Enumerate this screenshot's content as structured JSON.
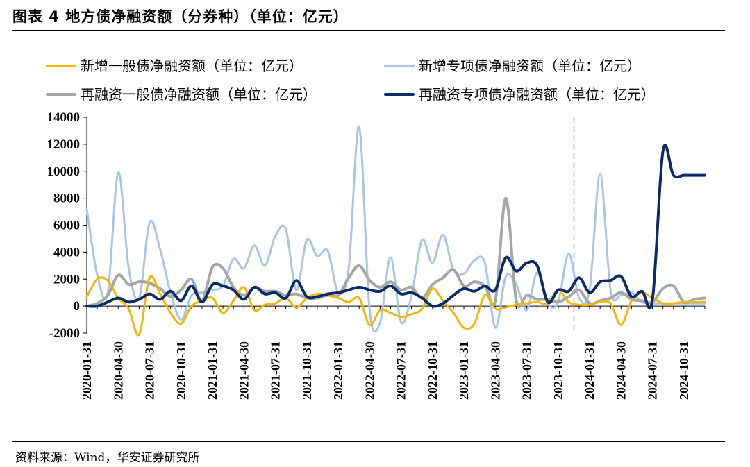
{
  "header": {
    "title": "图表 4 地方债净融资额（分券种）（单位：亿元）"
  },
  "footer": {
    "source": "资料来源：Wind，华安证券研究所"
  },
  "chart_data": {
    "type": "line",
    "title": "图表 4 地方债净融资额（分券种）（单位：亿元）",
    "xlabel": "",
    "ylabel": "",
    "ylim": [
      -2000,
      14000
    ],
    "yticks": [
      -2000,
      0,
      2000,
      4000,
      6000,
      8000,
      10000,
      12000,
      14000
    ],
    "ytick_labels": [
      "-2000",
      "0",
      "2000",
      "4000",
      "6000",
      "8000",
      "10000",
      "12000",
      "14000"
    ],
    "x_tick_labels": [
      "2020-01-31",
      "2020-04-30",
      "2020-07-31",
      "2020-10-31",
      "2021-01-31",
      "2021-04-30",
      "2021-07-31",
      "2021-10-31",
      "2022-01-31",
      "2022-04-30",
      "2022-07-31",
      "2022-10-31",
      "2023-01-31",
      "2023-04-30",
      "2023-07-31",
      "2023-10-31",
      "2024-01-31",
      "2024-04-30",
      "2024-07-31",
      "2024-10-31"
    ],
    "x_tick_index": [
      0,
      3,
      6,
      9,
      12,
      15,
      18,
      21,
      24,
      27,
      30,
      33,
      36,
      39,
      42,
      45,
      48,
      51,
      54,
      57
    ],
    "n_points": 60,
    "vline_index": 46.5,
    "series": [
      {
        "name": "新增一般债净融资额（单位：亿元）",
        "color": "#F2B705",
        "width": 3,
        "values": [
          700,
          2000,
          1900,
          600,
          -200,
          -2100,
          2100,
          900,
          -500,
          -1300,
          0,
          400,
          600,
          -500,
          400,
          1400,
          -300,
          100,
          200,
          600,
          -100,
          600,
          900,
          800,
          600,
          300,
          600,
          -1400,
          -300,
          -500,
          -800,
          -600,
          -200,
          1300,
          400,
          -500,
          -1600,
          -1300,
          800,
          -200,
          -100,
          100,
          200,
          300,
          200,
          1200,
          300,
          100,
          100,
          300,
          200,
          -1400,
          400,
          1000,
          600,
          200,
          200,
          300,
          300,
          300
        ]
      },
      {
        "name": "新增专项债净融资额（单位：亿元）",
        "color": "#A9C4E8",
        "width": 3,
        "values": [
          7200,
          2300,
          1000,
          9900,
          2800,
          600,
          6200,
          4200,
          1000,
          -1000,
          800,
          1000,
          1200,
          1500,
          3500,
          2800,
          4500,
          3000,
          5200,
          5700,
          1200,
          4900,
          3700,
          4100,
          1000,
          2800,
          13300,
          -300,
          -1200,
          3600,
          -1200,
          800,
          4900,
          3200,
          5300,
          2700,
          2400,
          3400,
          3200,
          -1600,
          2200,
          1600,
          -300,
          2500,
          200,
          300,
          3900,
          600,
          1200,
          9800,
          1200,
          800,
          1000,
          300,
          200,
          200,
          200,
          200,
          200,
          200
        ]
      },
      {
        "name": "再融资一般债净融资额（单位：亿元）",
        "color": "#A6A6A6",
        "width": 4,
        "values": [
          0,
          200,
          800,
          2300,
          1600,
          1800,
          1700,
          1300,
          700,
          1200,
          2000,
          400,
          2900,
          2800,
          1400,
          800,
          1400,
          1100,
          1100,
          800,
          900,
          600,
          600,
          800,
          800,
          2100,
          3000,
          1900,
          1400,
          1800,
          1200,
          1400,
          600,
          1600,
          2100,
          2700,
          1500,
          1800,
          1500,
          400,
          8000,
          400,
          800,
          500,
          500,
          300,
          700,
          1200,
          200,
          400,
          600,
          1000,
          500,
          400,
          300,
          1300,
          1500,
          300,
          500,
          600
        ]
      },
      {
        "name": "再融资专项债净融资额（单位：亿元）",
        "color": "#0B2B66",
        "width": 4,
        "values": [
          0,
          0,
          300,
          600,
          300,
          500,
          900,
          500,
          1100,
          400,
          1500,
          300,
          1600,
          1500,
          1200,
          500,
          1400,
          900,
          1000,
          600,
          1900,
          700,
          700,
          900,
          1000,
          1200,
          1400,
          1200,
          1100,
          1500,
          900,
          1000,
          600,
          0,
          200,
          800,
          1300,
          1100,
          1500,
          1200,
          3600,
          2600,
          3200,
          3000,
          300,
          1200,
          1100,
          2100,
          1000,
          1800,
          1900,
          2200,
          700,
          1100,
          500,
          11500,
          9700,
          9700,
          9700,
          9700
        ]
      }
    ]
  }
}
